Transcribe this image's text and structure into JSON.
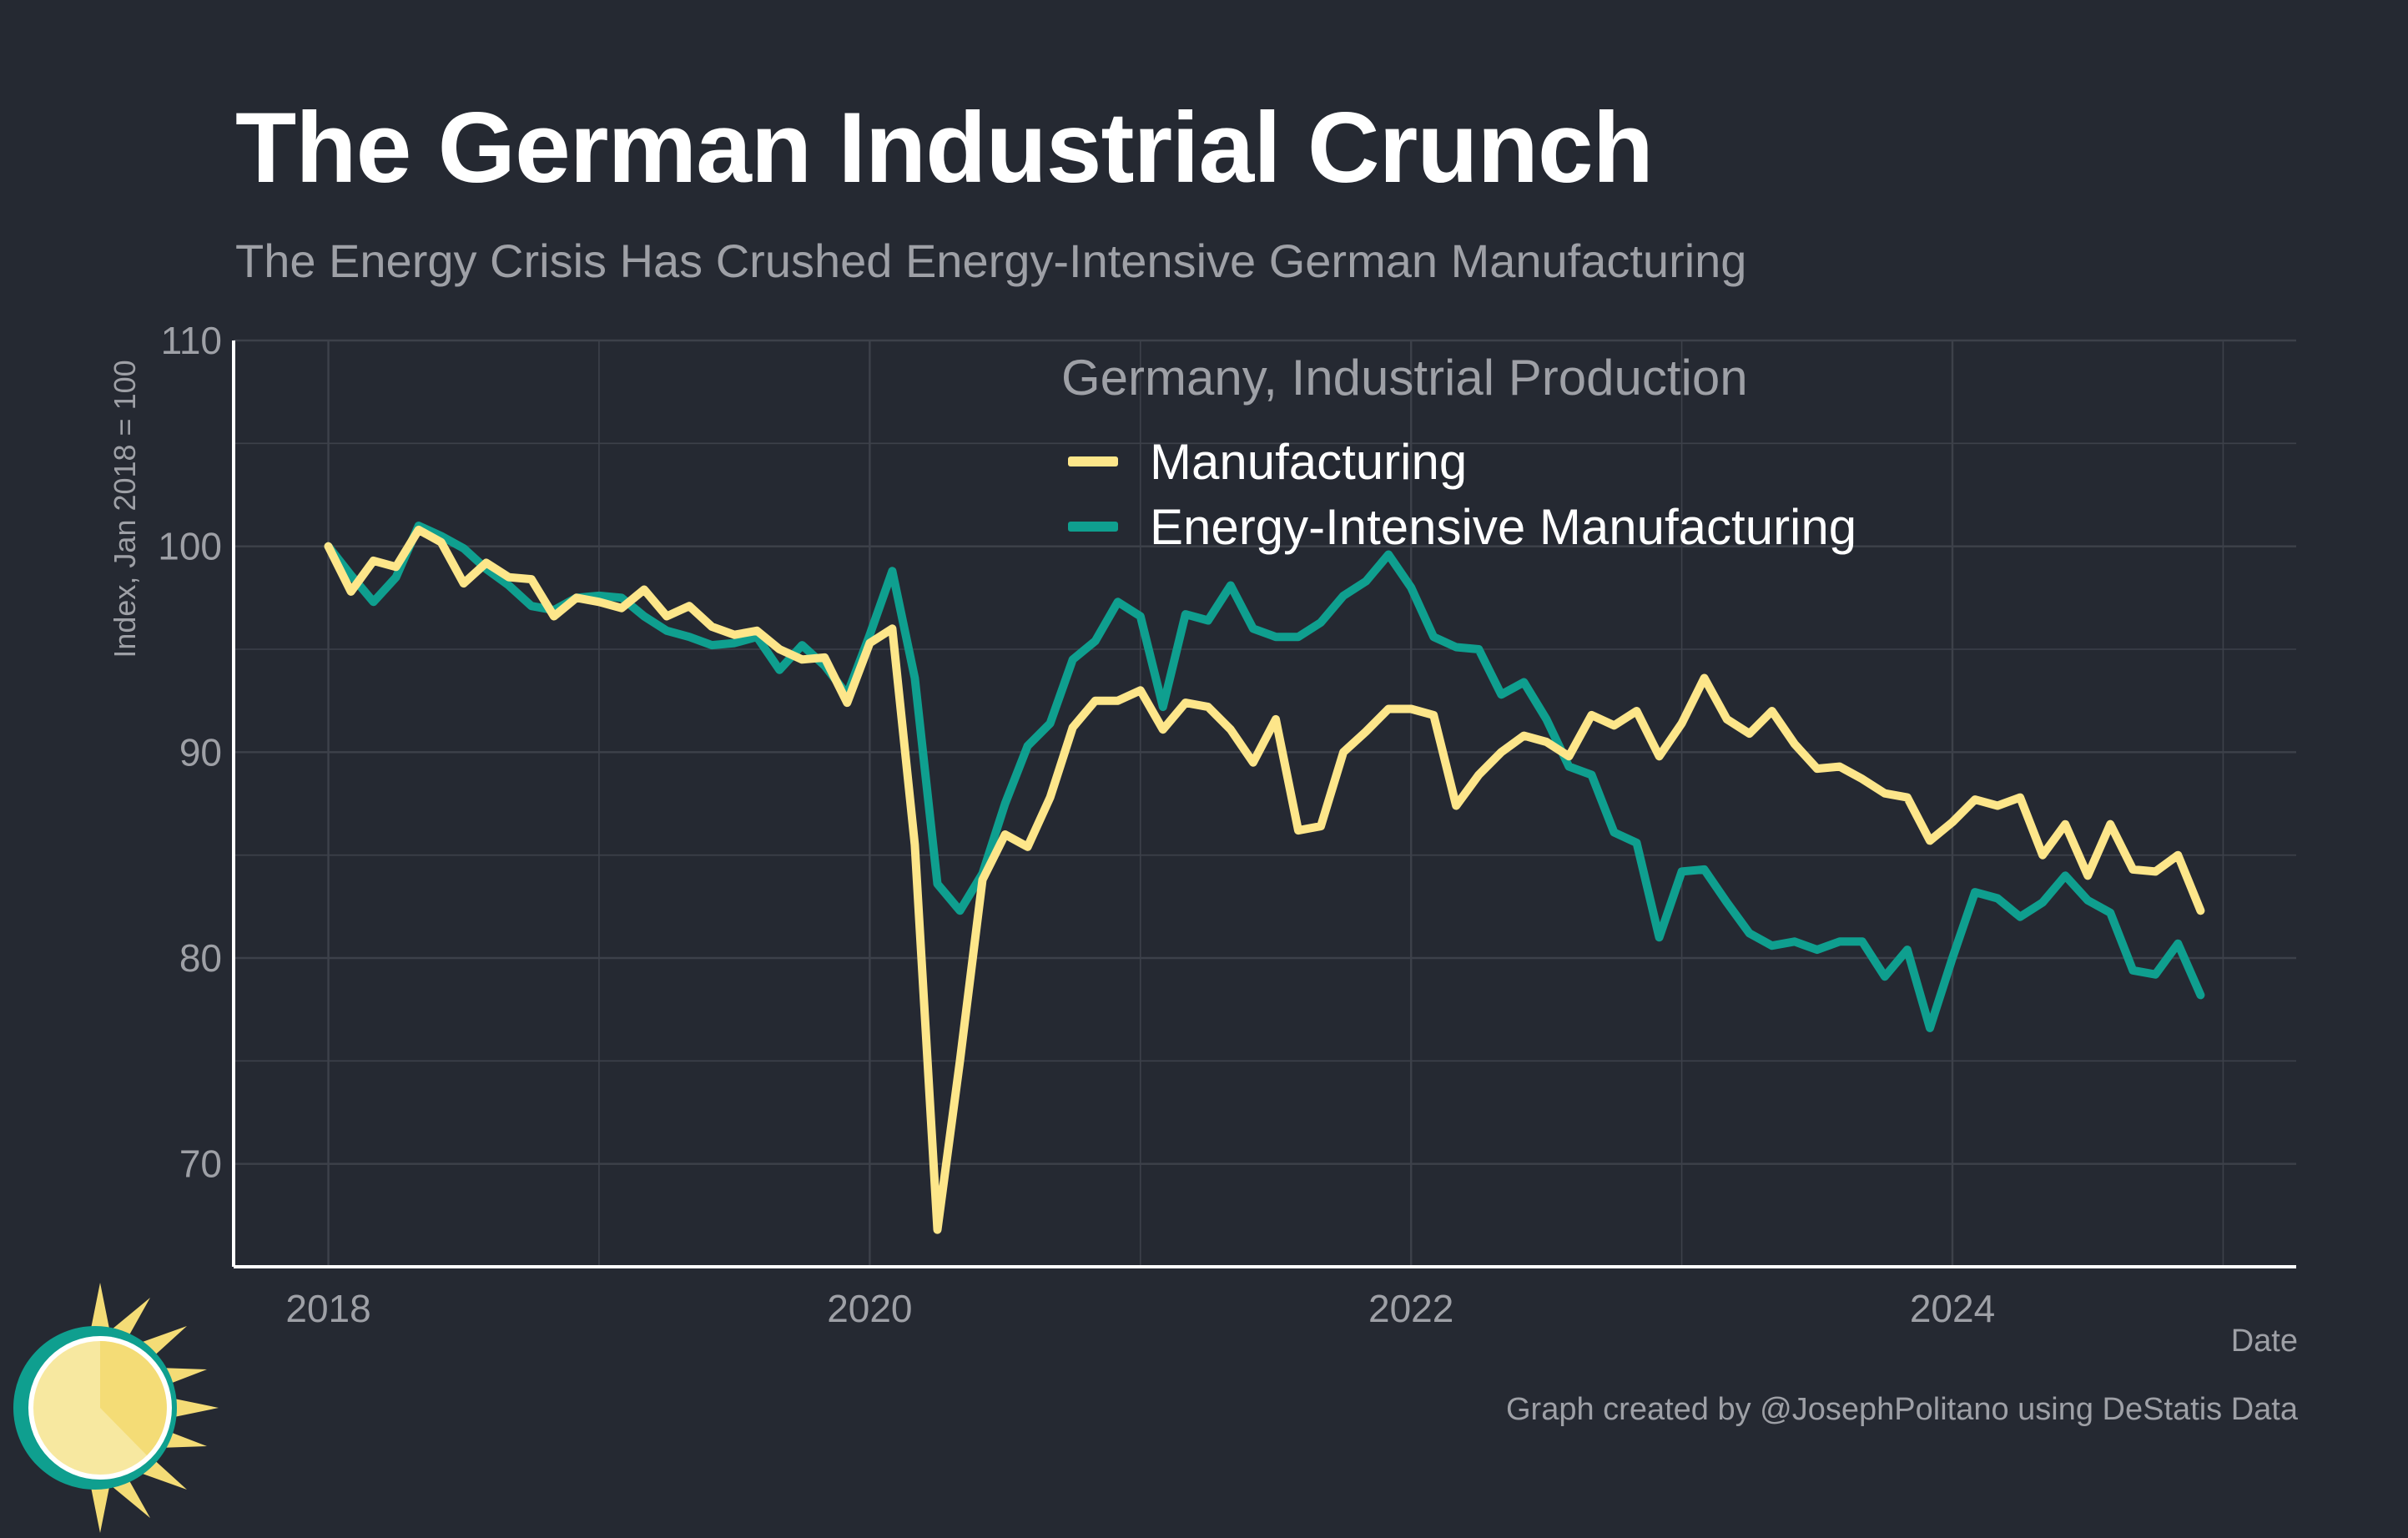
{
  "title": "The German Industrial Crunch",
  "subtitle": "The Energy Crisis Has Crushed Energy-Intensive German Manufacturing",
  "credit": "Graph created by @JosephPolitano using DeStatis Data",
  "colors": {
    "background": "#252932",
    "grid": "#3d414a",
    "axis": "#ffffff",
    "muted_text": "#9ea0a6",
    "manufacturing": "#fde68a",
    "energy_intensive": "#0f9f8f"
  },
  "chart_data": {
    "type": "line",
    "title": "The German Industrial Crunch",
    "subtitle": "The Energy Crisis Has Crushed Energy-Intensive German Manufacturing",
    "xlabel": "Date",
    "ylabel": "Index, Jan 2018 = 100",
    "x_start": 2018.0,
    "x_step_years": 0.0833333,
    "xlim": [
      2017.65,
      2025.27
    ],
    "ylim": [
      65.0,
      110.0
    ],
    "x_ticks": [
      2018,
      2020,
      2022,
      2024
    ],
    "x_tick_labels": [
      "2018",
      "2020",
      "2022",
      "2024"
    ],
    "y_ticks": [
      70,
      80,
      90,
      100,
      110
    ],
    "y_tick_labels": [
      "70",
      "80",
      "90",
      "100",
      "110"
    ],
    "grid": true,
    "legend": {
      "title": "Germany, Industrial Production",
      "position": "top-right"
    },
    "series": [
      {
        "name": "Manufacturing",
        "color": "#fde68a",
        "values": [
          100.0,
          97.8,
          99.3,
          99.0,
          100.8,
          100.2,
          98.2,
          99.2,
          98.5,
          98.4,
          96.6,
          97.5,
          97.3,
          97.0,
          97.9,
          96.6,
          97.1,
          96.1,
          95.7,
          95.9,
          95.0,
          94.5,
          94.6,
          92.4,
          95.3,
          96.0,
          85.5,
          66.8,
          75.0,
          83.8,
          86.0,
          85.4,
          87.8,
          91.2,
          92.5,
          92.5,
          93.0,
          91.1,
          92.4,
          92.2,
          91.1,
          89.5,
          91.6,
          86.2,
          86.4,
          90.0,
          91.0,
          92.1,
          92.1,
          91.8,
          87.4,
          88.9,
          90.0,
          90.8,
          90.5,
          89.8,
          91.8,
          91.3,
          92.0,
          89.8,
          91.4,
          93.6,
          91.6,
          90.9,
          92.0,
          90.4,
          89.2,
          89.3,
          88.7,
          88.0,
          87.8,
          85.7,
          86.6,
          87.7,
          87.4,
          87.8,
          85.0,
          86.5,
          84.0,
          86.5,
          84.3,
          84.2,
          85.0,
          82.3
        ]
      },
      {
        "name": "Energy-Intensive Manufacturing",
        "color": "#0f9f8f",
        "values": [
          100.0,
          98.6,
          97.3,
          98.5,
          101.0,
          100.5,
          99.9,
          98.9,
          98.1,
          97.1,
          96.9,
          97.5,
          97.6,
          97.5,
          96.6,
          95.9,
          95.6,
          95.2,
          95.3,
          95.6,
          94.0,
          95.2,
          94.2,
          92.8,
          95.7,
          98.8,
          93.6,
          83.6,
          82.3,
          84.1,
          87.5,
          90.3,
          91.4,
          94.5,
          95.4,
          97.3,
          96.6,
          92.2,
          96.7,
          96.4,
          98.1,
          96.0,
          95.6,
          95.6,
          96.3,
          97.6,
          98.3,
          99.6,
          98.0,
          95.6,
          95.1,
          95.0,
          92.8,
          93.4,
          91.6,
          89.3,
          88.9,
          86.1,
          85.6,
          81.0,
          84.2,
          84.3,
          82.7,
          81.2,
          80.6,
          80.8,
          80.4,
          80.8,
          80.8,
          79.1,
          80.4,
          76.6,
          80.0,
          83.2,
          82.9,
          82.0,
          82.7,
          84.0,
          82.8,
          82.2,
          79.4,
          79.2,
          80.7,
          78.2
        ]
      }
    ]
  }
}
